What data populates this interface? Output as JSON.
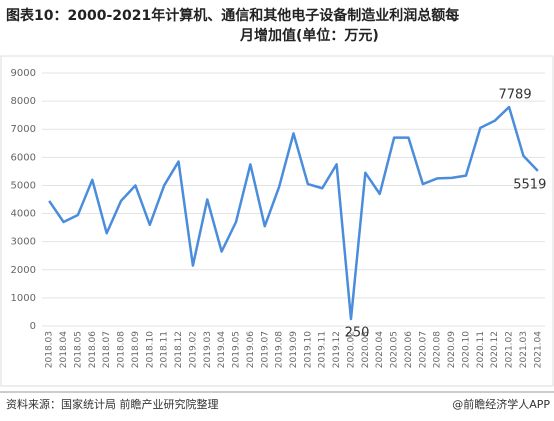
{
  "chart_data": {
    "type": "line",
    "title": [
      "图表10：2000-2021年计算机、通信和其他电子设备制造业利润总额每",
      "月增加值(单位：万元)"
    ],
    "categories": [
      "2018.03",
      "2018.04",
      "2018.05",
      "2018.06",
      "2018.07",
      "2018.08",
      "2018.09",
      "2018.10",
      "2018.11",
      "2018.12",
      "2019.02",
      "2019.03",
      "2019.04",
      "2019.05",
      "2019.06",
      "2019.07",
      "2019.08",
      "2019.09",
      "2019.10",
      "2019.11",
      "2019.12",
      "2020.02",
      "2020.03",
      "2020.04",
      "2020.05",
      "2020.06",
      "2020.07",
      "2020.08",
      "2020.09",
      "2020.10",
      "2020.11",
      "2020.12",
      "2021.02",
      "2021.03",
      "2021.04"
    ],
    "series": [
      {
        "color": "#4a8ddc",
        "values": [
          4450,
          3700,
          3950,
          5200,
          3300,
          4450,
          5000,
          3600,
          5000,
          5850,
          2150,
          4500,
          2650,
          3700,
          5750,
          3550,
          4950,
          6850,
          5050,
          4900,
          5750,
          250,
          5450,
          4700,
          6700,
          6700,
          5050,
          5250,
          5270,
          5350,
          7050,
          7300,
          7789,
          6050,
          5519
        ],
        "value_labels": [
          null,
          null,
          null,
          null,
          null,
          null,
          null,
          null,
          null,
          null,
          null,
          null,
          null,
          null,
          null,
          null,
          null,
          null,
          null,
          null,
          null,
          "250",
          null,
          null,
          null,
          null,
          null,
          null,
          null,
          null,
          null,
          null,
          "7789",
          null,
          "5519"
        ]
      }
    ],
    "ylim": [
      0,
      9000
    ],
    "yticks": [
      0,
      1000,
      2000,
      3000,
      4000,
      5000,
      6000,
      7000,
      8000,
      9000
    ],
    "grid": true,
    "source": "资料来源：国家统计局 前瞻产业研究院整理",
    "credit": "@前瞻经济学人APP"
  }
}
